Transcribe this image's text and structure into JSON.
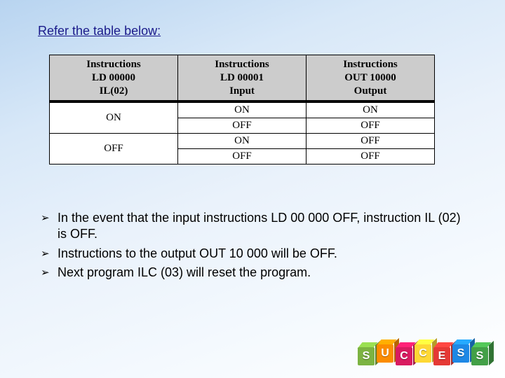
{
  "heading": "Refer the table below:",
  "table": {
    "headers": [
      {
        "lines": [
          "Instructions",
          "LD 00000",
          "IL(02)"
        ]
      },
      {
        "lines": [
          "Instructions",
          "LD 00001",
          "Input"
        ]
      },
      {
        "lines": [
          "Instructions",
          "OUT 10000",
          "Output"
        ]
      }
    ],
    "rows": [
      {
        "c0": "ON",
        "c0_rowspan": 2,
        "c1": "ON",
        "c2": "ON"
      },
      {
        "c1": "OFF",
        "c2": "OFF"
      },
      {
        "c0": "OFF",
        "c0_rowspan": 2,
        "c1": "ON",
        "c2": "OFF"
      },
      {
        "c1": "OFF",
        "c2": "OFF"
      }
    ]
  },
  "bullets": [
    "In the event that the input instructions LD 00 000 OFF, instruction IL (02) is OFF.",
    "Instructions to the output OUT 10 000 will be OFF.",
    "Next program ILC (03) will reset the program."
  ],
  "bullet_marker": "➢",
  "blocks": [
    {
      "letter": "S",
      "color": "#7cb342"
    },
    {
      "letter": "U",
      "color": "#fb8c00"
    },
    {
      "letter": "C",
      "color": "#d81b60"
    },
    {
      "letter": "C",
      "color": "#fdd835"
    },
    {
      "letter": "E",
      "color": "#e53935"
    },
    {
      "letter": "S",
      "color": "#1e88e5"
    },
    {
      "letter": "S",
      "color": "#43a047"
    }
  ]
}
